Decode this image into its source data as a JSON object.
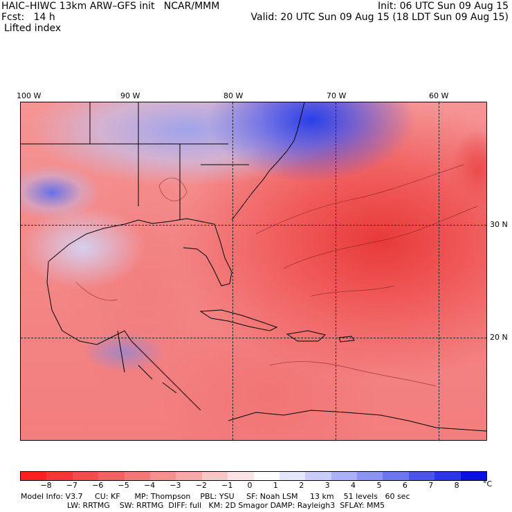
{
  "header": {
    "left_line1": "HAIC–HIWC 13km ARW–GFS init   NCAR/MMM",
    "left_line2": "Fcst:   14 h",
    "left_line3": "Lifted index",
    "right_line1": "Init: 06 UTC Sun 09 Aug 15",
    "right_line2": "Valid: 20 UTC Sun 09 Aug 15 (18 LDT Sun 09 Aug 15)"
  },
  "axes": {
    "longitude_labels": [
      "100 W",
      "90 W",
      "80 W",
      "70 W",
      "60 W"
    ],
    "latitude_labels": [
      "30 N",
      "20 N"
    ]
  },
  "colorbar": {
    "ticks": [
      "−8",
      "−7",
      "−6",
      "−5",
      "−4",
      "−3",
      "−2",
      "−1",
      "0",
      "1",
      "2",
      "3",
      "4",
      "5",
      "6",
      "7",
      "8"
    ],
    "unit": "°C",
    "colors": [
      "#ff2020",
      "#f43636",
      "#f24c4c",
      "#f26262",
      "#f47878",
      "#f69090",
      "#f8a8a8",
      "#fbc6c6",
      "#fde4e4",
      "#ffffff",
      "#e4e6fb",
      "#c8ccf8",
      "#aab0f5",
      "#8c94f2",
      "#6c76ee",
      "#4a56ea",
      "#2a36e6",
      "#0a10e0"
    ]
  },
  "footer": {
    "line1": "Model Info: V3.7     CU: KF      MP: Thompson    PBL: YSU     SF: Noah LSM     13 km    51 levels   60 sec",
    "line2": "LW: RRTMG    SW: RRTMG  DIFF: full   KM: 2D Smagor DAMP: Rayleigh3  SFLAY: MM5"
  }
}
